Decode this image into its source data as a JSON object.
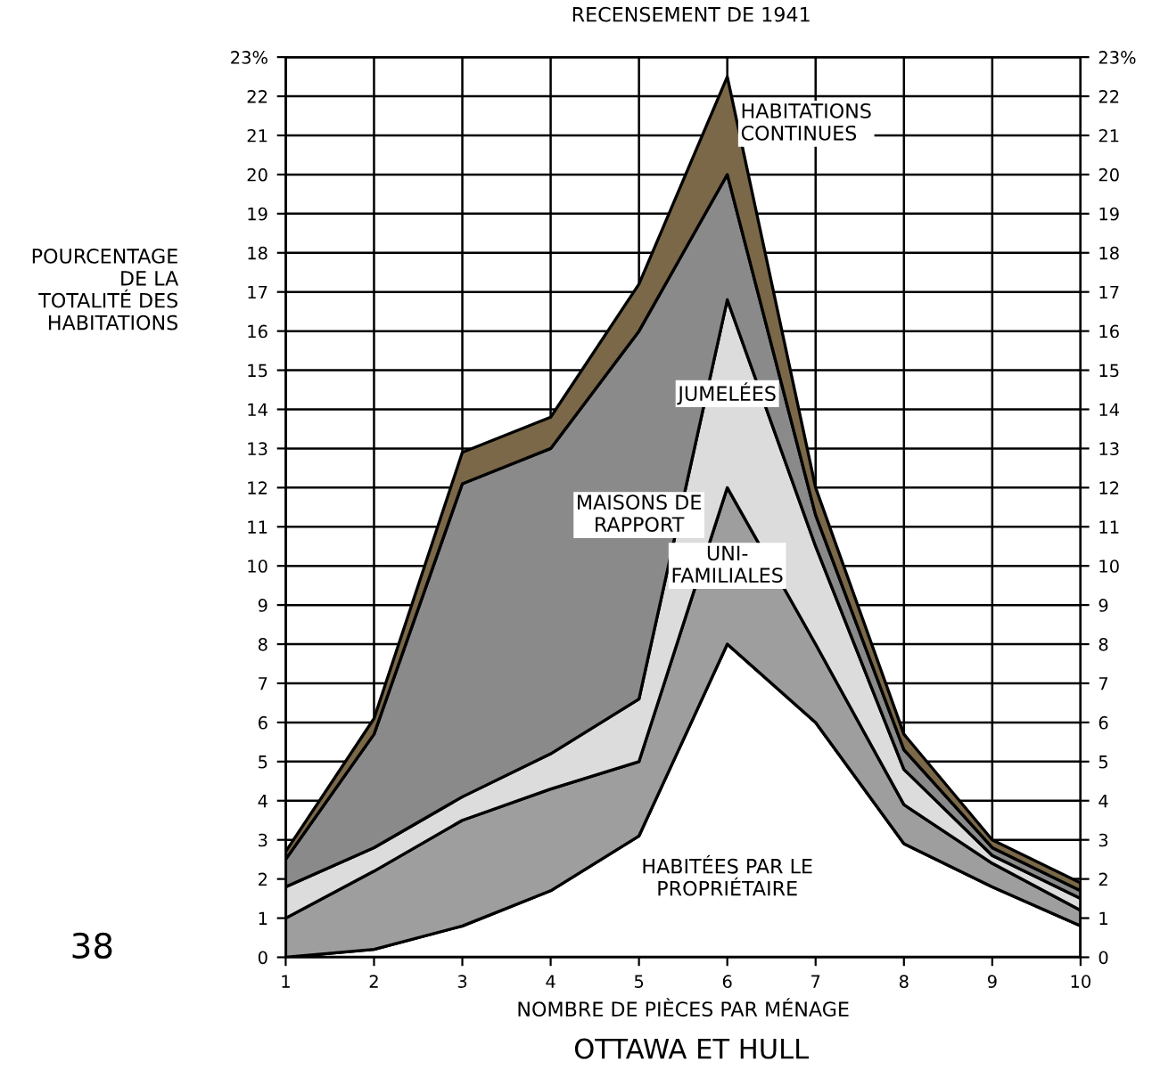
{
  "chart_data": {
    "type": "area",
    "stacked": true,
    "title": "RECENSEMENT DE 1941",
    "xlabel": "NOMBRE DE PIÈCES PAR MÉNAGE",
    "ylabel": "POURCENTAGE\nDE LA\nTOTALITÉ DES\nHABITATIONS",
    "annotations": [
      "OTTAWA ET HULL",
      "38"
    ],
    "x": [
      1,
      2,
      3,
      4,
      5,
      6,
      7,
      8,
      9,
      10
    ],
    "series": [
      {
        "name": "HABITÉES PAR LE\nPROPRIÉTAIRE",
        "color": "#ffffff",
        "values": [
          0,
          0.2,
          0.8,
          1.7,
          3.1,
          8,
          6,
          2.9,
          1.8,
          0.8
        ]
      },
      {
        "name": "UNI-\nFAMILIALES",
        "color": "#9e9e9e",
        "values": [
          1.0,
          2.0,
          2.7,
          2.6,
          1.9,
          4,
          2,
          1.0,
          0.6,
          0.4
        ]
      },
      {
        "name": "JUMELÉES",
        "color": "#dcdcdc",
        "values": [
          0.8,
          0.6,
          0.6,
          0.9,
          1.6,
          4.8,
          2.5,
          0.9,
          0.2,
          0.3
        ]
      },
      {
        "name": "MAISONS DE\nRAPPORT",
        "color": "#8a8a8a",
        "values": [
          0.7,
          2.9,
          8.0,
          7.8,
          9.4,
          3.2,
          0.8,
          0.5,
          0.2,
          0.2
        ]
      },
      {
        "name": "HABITATIONS\nCONTINUES",
        "color": "#7a6848",
        "values": [
          0.2,
          0.4,
          0.8,
          0.8,
          1.2,
          2.5,
          0.7,
          0.4,
          0.2,
          0.2
        ]
      }
    ],
    "xlim": [
      1,
      10
    ],
    "xticks": [
      1,
      2,
      3,
      4,
      5,
      6,
      7,
      8,
      9,
      10
    ],
    "ylim": [
      0,
      23
    ],
    "yticks": [
      0,
      1,
      2,
      3,
      4,
      5,
      6,
      7,
      8,
      9,
      10,
      11,
      12,
      13,
      14,
      15,
      16,
      17,
      18,
      19,
      20,
      21,
      22,
      {
        "value": 23,
        "label": "23%"
      }
    ],
    "y2lim": [
      0,
      23
    ],
    "y2ticks": [
      0,
      1,
      2,
      3,
      4,
      5,
      6,
      7,
      8,
      9,
      10,
      11,
      12,
      13,
      14,
      15,
      16,
      17,
      18,
      19,
      20,
      21,
      22,
      {
        "value": 23,
        "label": "23%"
      }
    ],
    "grid": true,
    "legend": false
  }
}
